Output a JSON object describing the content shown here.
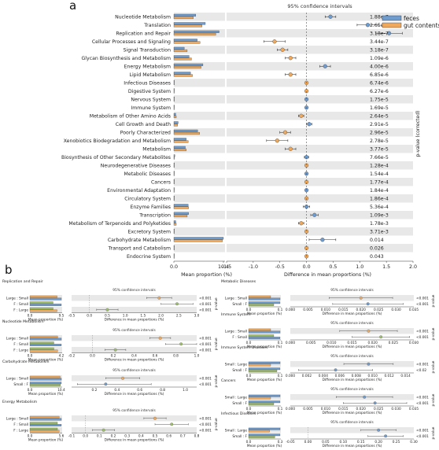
{
  "panel_a_label": "a",
  "panel_b_label": "b",
  "colors": {
    "feces": "#6f9ccf",
    "gut_contents": "#f0a95a",
    "grey_bg": "#e8e8e8",
    "green": "#9dbf68",
    "grey_dot": "#a7a7a7"
  },
  "chart_data": [
    {
      "type": "bar",
      "panel": "a",
      "title": "95% confidence intervals",
      "legend": [
        "feces",
        "gut contents"
      ],
      "legend_position": "top-right",
      "xlabel_left": "Mean proportion (%)",
      "xlabel_right": "Difference in mean proportions (%)",
      "pvalue_label": "p-value (corrected)",
      "left_ticks": [
        "0.0",
        "10.4"
      ],
      "right_ticks": [
        "-1.5",
        "-1.0",
        "-0.5",
        "0.0",
        "0.5",
        "1.0",
        "1.5",
        "2.0"
      ],
      "left_xlim": [
        0,
        10.4
      ],
      "right_xlim": [
        -1.5,
        2.0
      ],
      "categories": [
        "Nucleotide Metabolism",
        "Translation",
        "Replication and Repair",
        "Cellular Processes and Signaling",
        "Signal Transduction",
        "Glycan Biosynthesis and Metabolism",
        "Energy Metabolism",
        "Lipid Metabolism",
        "Infectious Diseases",
        "Digestive System",
        "Nervous System",
        "Immune System",
        "Metabolism of Other Amino Acids",
        "Cell Growth and Death",
        "Poorly Characterized",
        "Xenobiotics Biodegradation and Metabolism",
        "Metabolism",
        "Biosynthesis of Other Secondary Metabolites",
        "Neurodegenerative Diseases",
        "Metabolic Diseases",
        "Cancers",
        "Environmental Adaptation",
        "Circulatory System",
        "Enzyme Families",
        "Transcription",
        "Metabolism of Terpenoids and Polyketides",
        "Excretory System",
        "Carbohydrate Metabolism",
        "Transport and Catabolism",
        "Endocrine System"
      ],
      "series": [
        {
          "name": "feces",
          "values": [
            4.6,
            6.6,
            9.5,
            4.9,
            2.2,
            3.2,
            6.1,
            3.5,
            0.05,
            0.05,
            0.02,
            0.03,
            0.4,
            0.9,
            5.0,
            2.6,
            2.4,
            0.2,
            0.03,
            0.02,
            0.02,
            0.01,
            0.01,
            3.0,
            3.1,
            0.4,
            0.01,
            10.4,
            0.01,
            0.01
          ]
        },
        {
          "name": "gut contents",
          "values": [
            4.1,
            5.9,
            8.8,
            5.5,
            2.8,
            3.7,
            5.7,
            3.9,
            0.04,
            0.04,
            0.02,
            0.03,
            0.5,
            0.8,
            5.4,
            3.0,
            2.6,
            0.15,
            0.03,
            0.02,
            0.02,
            0.01,
            0.01,
            3.1,
            2.8,
            0.5,
            0.01,
            10.2,
            0.01,
            0.01
          ]
        }
      ],
      "diff": [
        0.45,
        1.15,
        1.55,
        -0.6,
        -0.45,
        -0.3,
        0.35,
        -0.3,
        0.0,
        0.0,
        0.0,
        0.0,
        -0.1,
        0.05,
        -0.4,
        -0.55,
        -0.3,
        0.0,
        0.0,
        0.0,
        0.0,
        0.0,
        0.0,
        0.0,
        0.15,
        -0.1,
        0.0,
        0.3,
        0.0,
        0.0
      ],
      "ci_low": [
        0.35,
        0.95,
        1.3,
        -0.8,
        -0.55,
        -0.4,
        0.25,
        -0.4,
        -0.02,
        -0.02,
        -0.01,
        -0.01,
        -0.15,
        0.0,
        -0.5,
        -0.75,
        -0.4,
        -0.04,
        -0.01,
        -0.01,
        -0.01,
        -0.01,
        -0.01,
        -0.06,
        0.08,
        -0.15,
        -0.01,
        0.05,
        -0.01,
        -0.01
      ],
      "ci_high": [
        0.55,
        1.35,
        1.8,
        -0.4,
        -0.35,
        -0.2,
        0.45,
        -0.2,
        0.02,
        0.02,
        0.01,
        0.01,
        -0.05,
        0.1,
        -0.3,
        -0.35,
        -0.2,
        0.04,
        0.01,
        0.01,
        0.01,
        0.01,
        0.01,
        0.06,
        0.22,
        -0.05,
        0.01,
        0.55,
        0.01,
        0.01
      ],
      "diff_color": [
        "feces",
        "feces",
        "feces",
        "gut contents",
        "gut contents",
        "gut contents",
        "feces",
        "gut contents",
        "gut contents",
        "gut contents",
        "feces",
        "feces",
        "gut contents",
        "feces",
        "gut contents",
        "gut contents",
        "gut contents",
        "feces",
        "gut contents",
        "feces",
        "gut contents",
        "feces",
        "gut contents",
        "feces",
        "feces",
        "gut contents",
        "gut contents",
        "feces",
        "gut contents",
        "gut contents"
      ],
      "pvalues": [
        "1.88e-7",
        "2.65e-7",
        "3.18e-7",
        "3.44e-7",
        "3.18e-7",
        "1.09e-6",
        "4.00e-6",
        "6.85e-6",
        "6.74e-6",
        "6.27e-6",
        "1.75e-5",
        "1.69e-5",
        "2.64e-5",
        "2.91e-5",
        "2.96e-5",
        "2.78e-5",
        "3.77e-5",
        "7.66e-5",
        "1.28e-4",
        "1.54e-4",
        "1.77e-4",
        "1.84e-4",
        "1.86e-4",
        "5.36e-4",
        "1.09e-3",
        "1.78e-3",
        "3.71e-3",
        "0.014",
        "0.026",
        "0.043"
      ]
    },
    {
      "type": "bar",
      "panel": "b",
      "title": "Replication and Repair",
      "ci_title": "95% confidence intervals",
      "xlabel_left": "Mean proportion (%)",
      "xlabel_right": "Difference in mean proportions (%)",
      "pvalue_label": "p-value",
      "categories": [
        "Large : Small",
        "F : Small",
        "F : Large"
      ],
      "series": [
        {
          "name": "Large",
          "values": [
            8.2,
            0,
            0
          ]
        },
        {
          "name": "Small",
          "values": [
            9.5,
            9.5,
            0
          ]
        },
        {
          "name": "F",
          "values": [
            0,
            7.0,
            7.0
          ]
        }
      ],
      "left_ticks": [
        "0.0",
        "9.5"
      ],
      "left_xlim": [
        0,
        9.5
      ],
      "right_ticks": [
        "-0.5",
        "0.0",
        "0.5",
        "1.0",
        "1.5",
        "2.0",
        "2.5",
        "3.0"
      ],
      "right_xlim": [
        -0.5,
        3.0
      ],
      "diff": [
        1.95,
        2.45,
        0.5
      ],
      "ci_low": [
        1.6,
        2.0,
        0.2
      ],
      "ci_high": [
        2.3,
        2.9,
        0.8
      ],
      "pvalues": [
        "<0.001",
        "<0.001",
        "<0.001"
      ]
    },
    {
      "type": "bar",
      "panel": "b",
      "title": "Nucleotide Metabolism",
      "ci_title": "95% confidence intervals",
      "xlabel_left": "Mean proportion (%)",
      "xlabel_right": "Difference in mean proportions (%)",
      "pvalue_label": "p-value",
      "categories": [
        "Large : Small",
        "F : Small",
        "F : Large"
      ],
      "series": [
        {
          "name": "Large",
          "values": [
            3.7,
            0,
            0
          ]
        },
        {
          "name": "Small",
          "values": [
            4.2,
            4.2,
            0
          ]
        },
        {
          "name": "F",
          "values": [
            0,
            3.2,
            3.2
          ]
        }
      ],
      "left_ticks": [
        "0.0",
        "4.2"
      ],
      "left_xlim": [
        0,
        4.2
      ],
      "right_ticks": [
        "-0.2",
        "0.0",
        "0.2",
        "0.4",
        "0.6",
        "0.8",
        "1.0"
      ],
      "right_xlim": [
        -0.2,
        1.0
      ],
      "diff": [
        0.65,
        0.85,
        0.22
      ],
      "ci_low": [
        0.55,
        0.7,
        0.12
      ],
      "ci_high": [
        0.75,
        1.0,
        0.32
      ],
      "pvalues": [
        "<0.001",
        "<0.001",
        "<0.001"
      ]
    },
    {
      "type": "bar",
      "panel": "b",
      "title": "Carbohydrate Metabolism",
      "ci_title": "95% confidence intervals",
      "xlabel_left": "Mean proportion (%)",
      "xlabel_right": "Difference in mean proportions (%)",
      "pvalue_label": "p-value",
      "categories": [
        "Large : Small",
        "Small : F"
      ],
      "series": [
        {
          "name": "Large",
          "values": [
            10.0,
            0
          ]
        },
        {
          "name": "Small",
          "values": [
            10.4,
            10.4
          ]
        },
        {
          "name": "F",
          "values": [
            0,
            10.1
          ]
        }
      ],
      "left_ticks": [
        "0.0",
        "10.4"
      ],
      "left_xlim": [
        0,
        10.4
      ],
      "right_ticks": [
        "0.2",
        "0.4",
        "0.6",
        "0.8",
        "1.0"
      ],
      "right_xlim": [
        0.0,
        1.1
      ],
      "diff": [
        0.45,
        0.3
      ],
      "ci_low": [
        0.3,
        0.05
      ],
      "ci_high": [
        0.6,
        0.7
      ],
      "pvalues": [
        "<0.001",
        "<0.001"
      ]
    },
    {
      "type": "bar",
      "panel": "b",
      "title": "Energy Metabolism",
      "ci_title": "95% confidence intervals",
      "xlabel_left": "Mean proportion (%)",
      "xlabel_right": "Difference in mean proportions (%)",
      "pvalue_label": "p-value",
      "categories": [
        "Large : Small",
        "F : Small",
        "F : Large"
      ],
      "series": [
        {
          "name": "Large",
          "values": [
            5.2,
            0,
            0
          ]
        },
        {
          "name": "Small",
          "values": [
            5.6,
            5.6,
            0
          ]
        },
        {
          "name": "F",
          "values": [
            0,
            4.9,
            4.9
          ]
        }
      ],
      "left_ticks": [
        "0.0",
        "5.6"
      ],
      "left_xlim": [
        0,
        5.6
      ],
      "right_ticks": [
        "-0.1",
        "0.0",
        "0.1",
        "0.2",
        "0.3",
        "0.4",
        "0.5",
        "0.6",
        "0.7",
        "0.8"
      ],
      "right_xlim": [
        -0.1,
        0.8
      ],
      "diff": [
        0.5,
        0.62,
        0.13
      ],
      "ci_low": [
        0.42,
        0.5,
        0.05
      ],
      "ci_high": [
        0.58,
        0.74,
        0.21
      ],
      "pvalues": [
        "<0.001",
        "<0.001",
        "<0.001"
      ]
    },
    {
      "type": "bar",
      "panel": "b",
      "title": "Metabolic Diseases",
      "ci_title": "95% confidence intervals",
      "xlabel_left": "Mean proportion (%)",
      "xlabel_right": "Difference in mean proportions (%)",
      "pvalue_label": "p-value",
      "categories": [
        "Large : Small",
        "Small : F"
      ],
      "series": [
        {
          "name": "Large",
          "values": [
            0.07,
            0
          ]
        },
        {
          "name": "Small",
          "values": [
            0.1,
            0.1
          ]
        },
        {
          "name": "F",
          "values": [
            0,
            0.08
          ]
        }
      ],
      "left_ticks": [
        "0.0",
        "0.1"
      ],
      "left_xlim": [
        0,
        0.1
      ],
      "right_ticks": [
        "0.000",
        "0.005",
        "0.010",
        "0.015",
        "0.020",
        "0.025",
        "0.030",
        "0.035"
      ],
      "right_xlim": [
        0.0,
        0.035
      ],
      "diff": [
        0.02,
        0.022
      ],
      "ci_low": [
        0.011,
        0.012
      ],
      "ci_high": [
        0.029,
        0.032
      ],
      "pvalues": [
        "<0.001",
        "<0.001"
      ]
    },
    {
      "type": "bar",
      "panel": "b",
      "title": "Immune System",
      "ci_title": "95% confidence intervals",
      "xlabel_left": "Mean proportion (%)",
      "xlabel_right": "Difference in mean proportions (%)",
      "pvalue_label": "p-value",
      "categories": [
        "Large : Small",
        "F : Small"
      ],
      "series": [
        {
          "name": "Large",
          "values": [
            0.07,
            0
          ]
        },
        {
          "name": "Small",
          "values": [
            0.1,
            0.1
          ]
        },
        {
          "name": "F",
          "values": [
            0,
            0.08
          ]
        }
      ],
      "left_ticks": [
        "0.0",
        "0.1"
      ],
      "left_xlim": [
        0,
        0.1
      ],
      "right_ticks": [
        "0.000",
        "0.005",
        "0.010",
        "0.015",
        "0.020",
        "0.025",
        "0.030"
      ],
      "right_xlim": [
        0.0,
        0.03
      ],
      "diff": [
        0.019,
        0.022
      ],
      "ci_low": [
        0.012,
        0.015
      ],
      "ci_high": [
        0.026,
        0.029
      ],
      "pvalues": [
        "<0.001",
        "<0.001"
      ]
    },
    {
      "type": "bar",
      "panel": "b",
      "title": "Immune System Diseases",
      "ci_title": "95% confidence intervals",
      "xlabel_left": "Mean proportion (%)",
      "xlabel_right": "Difference in mean proportions (%)",
      "pvalue_label": "p-value",
      "categories": [
        "Small : Large",
        "Small : F"
      ],
      "series": [
        {
          "name": "Large",
          "values": [
            0.07,
            0
          ]
        },
        {
          "name": "Small",
          "values": [
            0.1,
            0.1
          ]
        },
        {
          "name": "F",
          "values": [
            0,
            0.09
          ]
        }
      ],
      "left_ticks": [
        "0.0",
        "0.1"
      ],
      "left_xlim": [
        0,
        0.1
      ],
      "right_ticks": [
        "0.000",
        "0.002",
        "0.004",
        "0.006",
        "0.008",
        "0.010",
        "0.012",
        "0.014"
      ],
      "right_xlim": [
        0.0,
        0.015
      ],
      "diff": [
        0.0095,
        0.0055
      ],
      "ci_low": [
        0.0065,
        0.001
      ],
      "ci_high": [
        0.0125,
        0.01
      ],
      "pvalues": [
        "<0.001",
        "<0.02"
      ]
    },
    {
      "type": "bar",
      "panel": "b",
      "title": "Cancers",
      "ci_title": "95% confidence intervals",
      "xlabel_left": "Mean proportion (%)",
      "xlabel_right": "Difference in mean proportions (%)",
      "pvalue_label": "p-value",
      "categories": [
        "Small : Large",
        "Small : F"
      ],
      "series": [
        {
          "name": "Large",
          "values": [
            0.07,
            0
          ]
        },
        {
          "name": "Small",
          "values": [
            0.1,
            0.1
          ]
        },
        {
          "name": "F",
          "values": [
            0,
            0.08
          ]
        }
      ],
      "left_ticks": [
        "0.0",
        "0.1"
      ],
      "left_xlim": [
        0,
        0.1
      ],
      "right_ticks": [
        "0.000",
        "0.005",
        "0.010",
        "0.015",
        "0.020",
        "0.025",
        "0.030",
        "0.035"
      ],
      "right_xlim": [
        0.0,
        0.035
      ],
      "diff": [
        0.021,
        0.024
      ],
      "ci_low": [
        0.013,
        0.015
      ],
      "ci_high": [
        0.029,
        0.033
      ],
      "pvalues": [
        "<0.001",
        "<0.001"
      ]
    },
    {
      "type": "bar",
      "panel": "b",
      "title": "Infectious Diseases",
      "ci_title": "95% confidence intervals",
      "xlabel_left": "Mean proportion (%)",
      "xlabel_right": "Difference in mean proportions (%)",
      "pvalue_label": "p-value",
      "categories": [
        "Small : Large",
        "Small : F"
      ],
      "series": [
        {
          "name": "Large",
          "values": [
            0.2,
            0
          ]
        },
        {
          "name": "Small",
          "values": [
            0.3,
            0.3
          ]
        },
        {
          "name": "F",
          "values": [
            0,
            0.25
          ]
        }
      ],
      "left_ticks": [
        "0.0",
        "0.3"
      ],
      "left_xlim": [
        0,
        0.3
      ],
      "right_ticks": [
        "-0.05",
        "0.00",
        "0.05",
        "0.10",
        "0.15",
        "0.20",
        "0.25",
        "0.30"
      ],
      "right_xlim": [
        -0.05,
        0.3
      ],
      "diff": [
        0.2,
        0.22
      ],
      "ci_low": [
        0.15,
        0.17
      ],
      "ci_high": [
        0.25,
        0.27
      ],
      "pvalues": [
        "<0.001",
        "<0.001"
      ]
    }
  ]
}
